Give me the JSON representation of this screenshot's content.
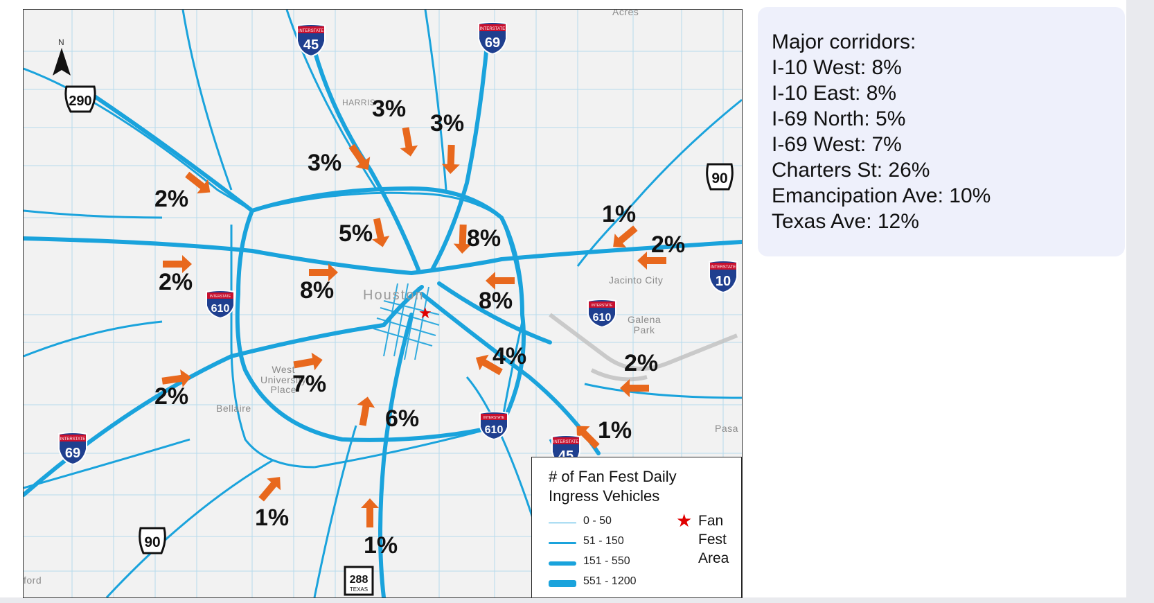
{
  "colors": {
    "road": "#1aa3dc",
    "arrow": "#e8681d",
    "star": "#e00000",
    "panel_bg": "#eef0fb"
  },
  "map": {
    "north_label": "N",
    "place_labels": [
      {
        "id": "acres",
        "text": "Acres"
      },
      {
        "id": "harris",
        "text": "HARRIS"
      },
      {
        "id": "houston",
        "text": "Houston"
      },
      {
        "id": "jacinto",
        "text": "Jacinto City"
      },
      {
        "id": "galena",
        "text": "Galena\nPark"
      },
      {
        "id": "west-university",
        "text": "West\nUniversity\nPlace"
      },
      {
        "id": "bellaire",
        "text": "Bellaire"
      },
      {
        "id": "pasadena",
        "text": "Pasa"
      },
      {
        "id": "ford",
        "text": "ford"
      }
    ],
    "shields": [
      {
        "id": "i45-north",
        "type": "interstate",
        "number": "45",
        "header": "INTERSTATE"
      },
      {
        "id": "i69-north",
        "type": "interstate",
        "number": "69",
        "header": "INTERSTATE"
      },
      {
        "id": "us290",
        "type": "us",
        "number": "290"
      },
      {
        "id": "us90-east",
        "type": "us",
        "number": "90"
      },
      {
        "id": "i10-east",
        "type": "interstate",
        "number": "10",
        "header": "INTERSTATE"
      },
      {
        "id": "i610-west",
        "type": "interstate",
        "number": "610",
        "header": "INTERSTATE"
      },
      {
        "id": "i610-east",
        "type": "interstate",
        "number": "610",
        "header": "INTERSTATE"
      },
      {
        "id": "i610-south",
        "type": "interstate",
        "number": "610",
        "header": "INTERSTATE"
      },
      {
        "id": "i69-southwest",
        "type": "interstate",
        "number": "69",
        "header": "INTERSTATE"
      },
      {
        "id": "i45-south",
        "type": "interstate",
        "number": "45",
        "header": "INTERSTATE"
      },
      {
        "id": "us90-southwest",
        "type": "us",
        "number": "90"
      },
      {
        "id": "tx288",
        "type": "texas",
        "number": "288",
        "footer": "TEXAS"
      }
    ],
    "percent_labels": [
      {
        "id": "n1",
        "text": "3%"
      },
      {
        "id": "n2",
        "text": "3%"
      },
      {
        "id": "n3",
        "text": "3%"
      },
      {
        "id": "nw",
        "text": "2%"
      },
      {
        "id": "n-inner",
        "text": "5%"
      },
      {
        "id": "ne-inner",
        "text": "8%"
      },
      {
        "id": "e-far1",
        "text": "1%"
      },
      {
        "id": "e-far2",
        "text": "2%"
      },
      {
        "id": "w-mid",
        "text": "2%"
      },
      {
        "id": "w-inner",
        "text": "8%"
      },
      {
        "id": "e-inner",
        "text": "8%"
      },
      {
        "id": "se-inner",
        "text": "4%"
      },
      {
        "id": "e-galena",
        "text": "2%"
      },
      {
        "id": "sw-mid",
        "text": "2%"
      },
      {
        "id": "sw-inner",
        "text": "7%"
      },
      {
        "id": "s-inner",
        "text": "6%"
      },
      {
        "id": "se-far",
        "text": "1%"
      },
      {
        "id": "sw-far",
        "text": "1%"
      },
      {
        "id": "s-far",
        "text": "1%"
      }
    ],
    "fan_fest_marker": "★"
  },
  "legend": {
    "title": "# of Fan Fest Daily\nIngress Vehicles",
    "classes": [
      {
        "label": "0 - 50"
      },
      {
        "label": "51 - 150"
      },
      {
        "label": "151 - 550"
      },
      {
        "label": "551 - 1200"
      }
    ],
    "star_symbol": "★",
    "star_label": "Fan\nFest\nArea"
  },
  "panel": {
    "title": "Major corridors:",
    "items": [
      "I-10 West: 8%",
      "I-10 East: 8%",
      "I-69 North: 5%",
      "I-69 West: 7%",
      "Charters St: 26%",
      "Emancipation Ave: 10%",
      "Texas Ave: 12%"
    ]
  }
}
